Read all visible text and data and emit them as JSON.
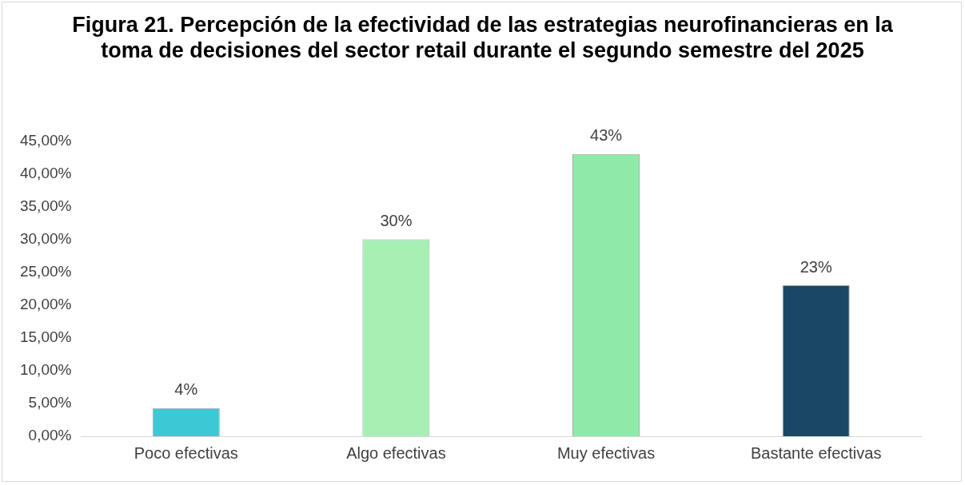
{
  "chart_data": {
    "type": "bar",
    "title": "Figura 21. Percepción de la efectividad de las estrategias neurofinancieras en la toma de decisiones del sector retail durante el segundo semestre del 2025",
    "categories": [
      "Poco efectivas",
      "Algo efectivas",
      "Muy efectivas",
      "Bastante efectivas"
    ],
    "values": [
      4.3,
      30,
      43,
      23
    ],
    "value_labels": [
      "4%",
      "30%",
      "43%",
      "23%"
    ],
    "colors": [
      "#3cc8d4",
      "#a6f0b4",
      "#8eeaa8",
      "#1b4766"
    ],
    "ylim": [
      0,
      45
    ],
    "yticks": [
      {
        "value": 0,
        "label": "0,00%"
      },
      {
        "value": 5,
        "label": "5,00%"
      },
      {
        "value": 10,
        "label": "10,00%"
      },
      {
        "value": 15,
        "label": "15,00%"
      },
      {
        "value": 20,
        "label": "20,00%"
      },
      {
        "value": 25,
        "label": "25,00%"
      },
      {
        "value": 30,
        "label": "30,00%"
      },
      {
        "value": 35,
        "label": "35,00%"
      },
      {
        "value": 40,
        "label": "40,00%"
      },
      {
        "value": 45,
        "label": "45,00%"
      }
    ],
    "grid": false,
    "legend": false
  }
}
